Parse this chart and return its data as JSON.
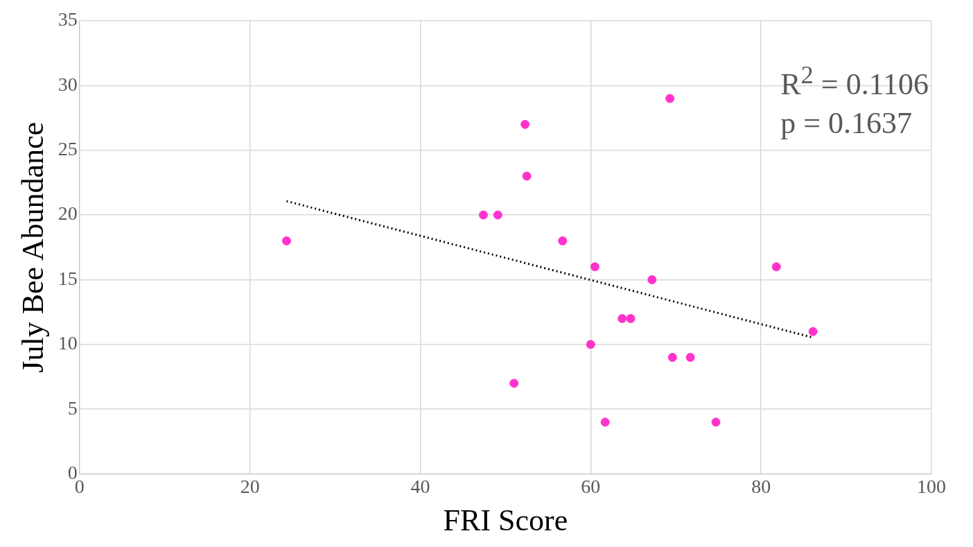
{
  "chart_data": {
    "type": "scatter",
    "xlabel": "FRI Score",
    "ylabel": "July Bee Abundance",
    "annotations": [
      "R$^{2}$ = 0.1106",
      "p = 0.1637"
    ],
    "series": [
      {
        "type": "scatter",
        "color": "#ff33cc",
        "x": [
          24.3,
          47.4,
          49.1,
          52.3,
          52.5,
          51.0,
          56.7,
          60.5,
          60.0,
          61.7,
          63.7,
          64.7,
          67.2,
          69.3,
          69.6,
          71.7,
          74.7,
          81.8,
          86.1
        ],
        "values": [
          18,
          20,
          20,
          27,
          23,
          7,
          18,
          16,
          10,
          4,
          12,
          12,
          15,
          29,
          9,
          9,
          4,
          16,
          11
        ]
      },
      {
        "type": "line",
        "color": "#000000",
        "line_style": "dotted",
        "marker": "none",
        "x": [
          24.3,
          86.1
        ],
        "values": [
          21.07,
          10.53
        ]
      }
    ],
    "xlim": [
      0,
      100
    ],
    "xticks": [
      0,
      20,
      40,
      60,
      80,
      100
    ],
    "ylim": [
      0,
      35
    ],
    "yticks": [
      0,
      5,
      10,
      15,
      20,
      25,
      30,
      35
    ],
    "grid": true,
    "legend": false,
    "marker": "circle"
  }
}
